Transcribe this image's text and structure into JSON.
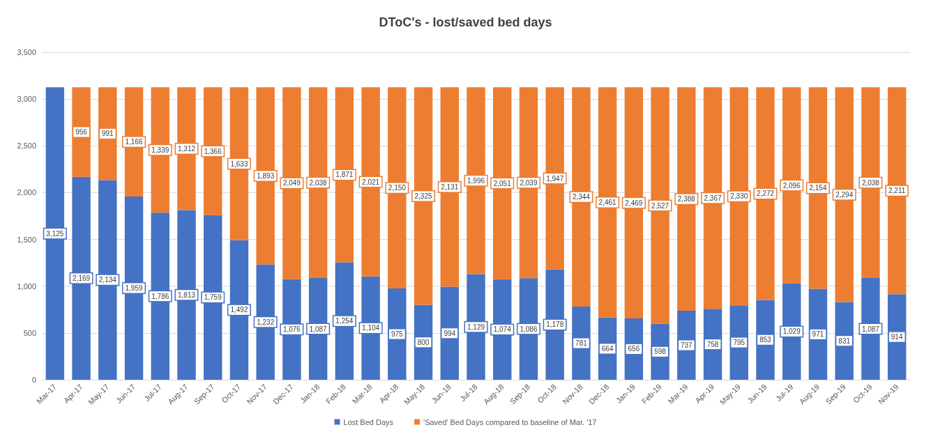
{
  "chart_data": {
    "type": "bar",
    "title": "DToC's - lost/saved bed days",
    "stacked": true,
    "categories": [
      "Mar-17",
      "Apr-17",
      "May-17",
      "Jun-17",
      "Jul-17",
      "Aug-17",
      "Sep-17",
      "Oct-17",
      "Nov-17",
      "Dec-17",
      "Jan-18",
      "Feb-18",
      "Mar-18",
      "Apr-18",
      "May-18",
      "Jun-18",
      "Jul-18",
      "Aug-18",
      "Sep-18",
      "Oct-18",
      "Nov-18",
      "Dec-18",
      "Jan-19",
      "Feb-19",
      "Mar-19",
      "Apr-19",
      "May-19",
      "Jun-19",
      "Jul-19",
      "Aug-19",
      "Sep-19",
      "Oct-19",
      "Nov-19"
    ],
    "series": [
      {
        "name": "Lost Bed Days",
        "color": "#4472c4",
        "values": [
          3125,
          2169,
          2134,
          1959,
          1786,
          1813,
          1759,
          1492,
          1232,
          1076,
          1087,
          1254,
          1104,
          975,
          800,
          994,
          1129,
          1074,
          1086,
          1178,
          781,
          664,
          656,
          598,
          737,
          758,
          795,
          853,
          1029,
          971,
          831,
          1087,
          914
        ],
        "value_labels": [
          "3,125",
          "2,169",
          "2,134",
          "1,959",
          "1,786",
          "1,813",
          "1,759",
          "1,492",
          "1,232",
          "1,076",
          "1,087",
          "1,254",
          "1,104",
          "975",
          "800",
          "994",
          "1,129",
          "1,074",
          "1,086",
          "1,178",
          "781",
          "664",
          "656",
          "598",
          "737",
          "758",
          "795",
          "853",
          "1,029",
          "971",
          "831",
          "1,087",
          "914"
        ]
      },
      {
        "name": "'Saved' Bed Days compared to baseline of Mar. '17",
        "color": "#ed7d31",
        "values": [
          null,
          956,
          991,
          1166,
          1339,
          1312,
          1366,
          1633,
          1893,
          2049,
          2038,
          1871,
          2021,
          2150,
          2325,
          2131,
          1996,
          2051,
          2039,
          1947,
          2344,
          2461,
          2469,
          2527,
          2388,
          2367,
          2330,
          2272,
          2096,
          2154,
          2294,
          2038,
          2211
        ],
        "value_labels": [
          null,
          "956",
          "991",
          "1,166",
          "1,339",
          "1,312",
          "1,366",
          "1,633",
          "1,893",
          "2,049",
          "2,038",
          "1,871",
          "2,021",
          "2,150",
          "2,325",
          "2,131",
          "1,996",
          "2,051",
          "2,039",
          "1,947",
          "2,344",
          "2,461",
          "2,469",
          "2,527",
          "2,388",
          "2,367",
          "2,330",
          "2,272",
          "2,096",
          "2,154",
          "2,294",
          "2,038",
          "2,211"
        ]
      }
    ],
    "ylim": [
      0,
      3500
    ],
    "yticks": [
      0,
      500,
      {
        "value": 1000,
        "label": "1,000"
      },
      {
        "value": 1500,
        "label": "1,500"
      },
      {
        "value": 2000,
        "label": "2,000"
      },
      {
        "value": 2500,
        "label": "2,500"
      },
      {
        "value": 3000,
        "label": "3,000"
      },
      {
        "value": 3500,
        "label": "3,500"
      }
    ],
    "grid": "y",
    "legend": "bottom"
  }
}
